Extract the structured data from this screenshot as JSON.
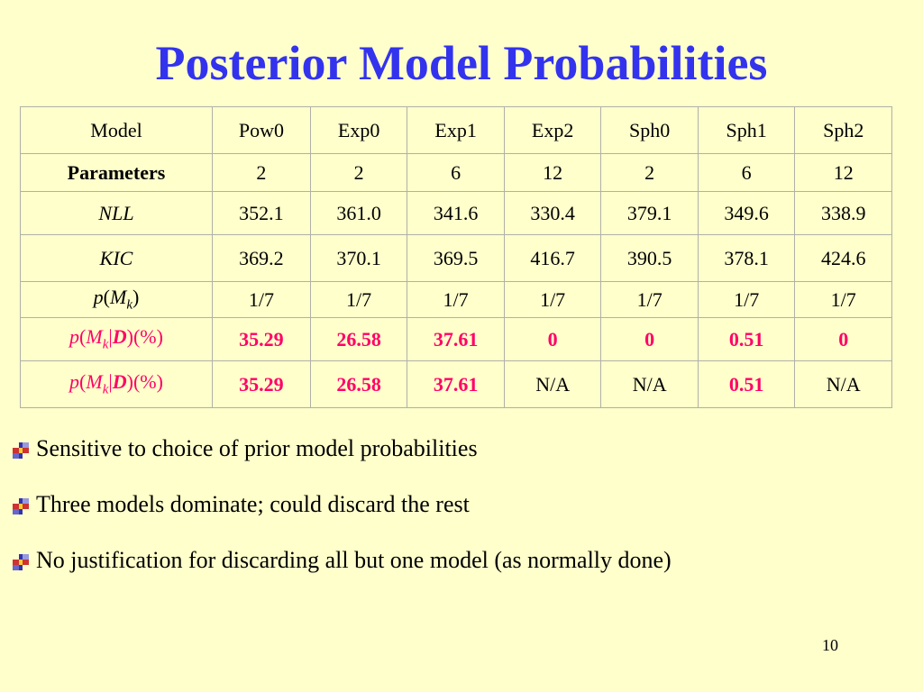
{
  "title": "Posterior Model Probabilities",
  "table": {
    "header": [
      "Model",
      "Pow0",
      "Exp0",
      "Exp1",
      "Exp2",
      "Sph0",
      "Sph1",
      "Sph2"
    ],
    "rows": [
      {
        "label": [
          "Parameters"
        ],
        "cells": [
          "2",
          "2",
          "6",
          "12",
          "2",
          "6",
          "12"
        ]
      },
      {
        "label": [
          "NLL"
        ],
        "cells": [
          "352.1",
          "361.0",
          "341.6",
          "330.4",
          "379.1",
          "349.6",
          "338.9"
        ]
      },
      {
        "label": [
          "KIC"
        ],
        "cells": [
          "369.2",
          "370.1",
          "369.5",
          "416.7",
          "390.5",
          "378.1",
          "424.6"
        ]
      },
      {
        "label": [
          "p",
          "(",
          "M",
          "k",
          ")"
        ],
        "cells": [
          "1/7",
          "1/7",
          "1/7",
          "1/7",
          "1/7",
          "1/7",
          "1/7"
        ]
      },
      {
        "label": [
          "p",
          "(",
          "M",
          "k",
          "|",
          "D",
          ")(%)"
        ],
        "cells": [
          "35.29",
          "26.58",
          "37.61",
          "0",
          "0",
          "0.51",
          "0"
        ]
      },
      {
        "label": [
          "p",
          "(",
          "M",
          "k",
          "|",
          "D",
          ")(%)"
        ],
        "cells": [
          "35.29",
          "26.58",
          "37.61",
          "N/A",
          "N/A",
          "0.51",
          "N/A"
        ]
      }
    ]
  },
  "bullets": [
    "Sensitive to choice of prior model probabilities",
    "Three models dominate; could discard the rest",
    "No justification for discarding all but one model (as normally done)"
  ],
  "page_number": "10"
}
